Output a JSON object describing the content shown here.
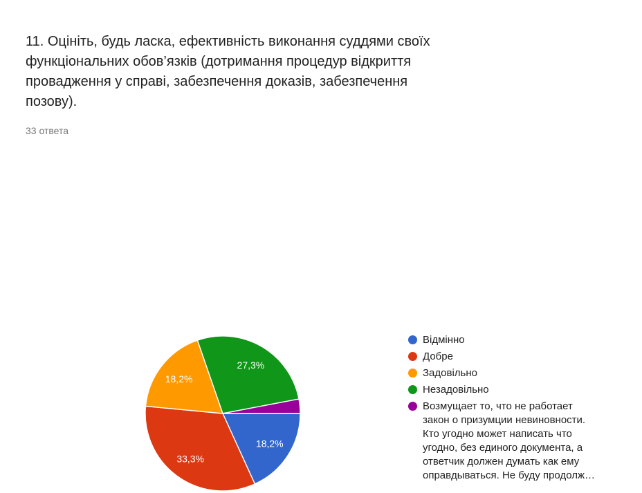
{
  "chart_data": {
    "type": "pie",
    "title": "11. Оцініть, будь ласка, ефективність виконання суддями своїх\nфункціональних обов’язків (дотримання процедур відкриття\nпровадження у справі, забезпечення доказів, забезпечення\nпозову).",
    "subtitle": "33 ответа",
    "legend_position": "right",
    "start_angle_deg_from_12": 90,
    "direction": "clockwise",
    "slice_border_color": "#ffffff",
    "label_color": "#ffffff",
    "slices": [
      {
        "label": "Відмінно",
        "pct": 18.2,
        "pct_label": "18,2%",
        "color": "#3366CC"
      },
      {
        "label": "Добре",
        "pct": 33.3,
        "pct_label": "33,3%",
        "color": "#DC3912"
      },
      {
        "label": "Задовільно",
        "pct": 18.2,
        "pct_label": "18,2%",
        "color": "#FF9900"
      },
      {
        "label": "Незадовільно",
        "pct": 27.3,
        "pct_label": "27,3%",
        "color": "#109618"
      },
      {
        "label": "Возмущает то, что не работает\nзакон о призумции невиновности.\nКто угодно может написать что\nугодно, без единого документа, а\nответчик должен думать как ему\nоправдываться. Не буду продолж…",
        "pct": 3.0,
        "pct_label": null,
        "color": "#990099"
      }
    ]
  }
}
